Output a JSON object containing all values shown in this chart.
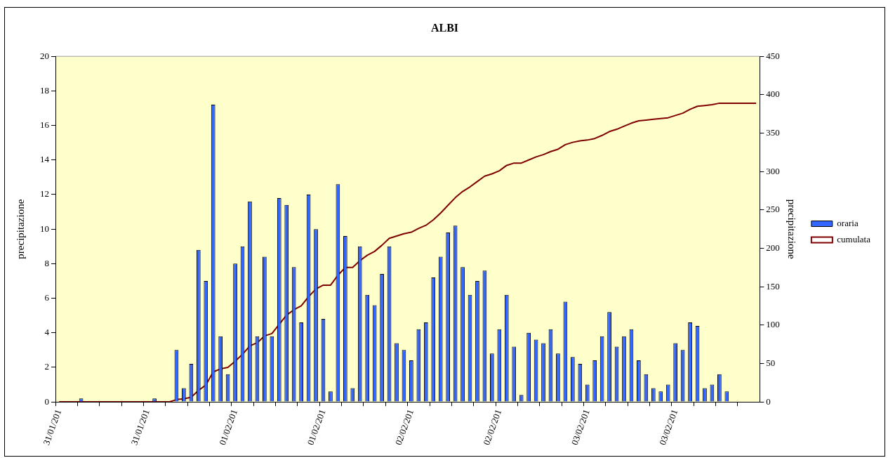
{
  "chart_data": {
    "type": "bar",
    "title": "ALBI",
    "ylabel": "precipitazione",
    "y2label": "precipitazione",
    "categories": [
      "31/01/201",
      null,
      null,
      null,
      null,
      null,
      null,
      null,
      null,
      null,
      null,
      null,
      "31/01/201",
      null,
      null,
      null,
      null,
      null,
      null,
      null,
      null,
      null,
      null,
      null,
      "01/02/201",
      null,
      null,
      null,
      null,
      null,
      null,
      null,
      null,
      null,
      null,
      null,
      "01/02/201",
      null,
      null,
      null,
      null,
      null,
      null,
      null,
      null,
      null,
      null,
      null,
      "02/02/201",
      null,
      null,
      null,
      null,
      null,
      null,
      null,
      null,
      null,
      null,
      null,
      "02/02/201",
      null,
      null,
      null,
      null,
      null,
      null,
      null,
      null,
      null,
      null,
      null,
      "03/02/201",
      null,
      null,
      null,
      null,
      null,
      null,
      null,
      null,
      null,
      null,
      null,
      "03/02/201",
      null,
      null,
      null,
      null,
      null,
      null,
      null,
      null,
      null,
      null,
      null
    ],
    "series": [
      {
        "name": "oraria",
        "color": "#3366ff",
        "values": [
          0,
          0,
          0,
          0.2,
          0,
          0,
          0,
          0,
          0,
          0,
          0,
          0,
          0,
          0.2,
          0,
          0,
          3.0,
          0.8,
          2.2,
          8.8,
          7.0,
          17.2,
          3.8,
          1.6,
          8.0,
          9.0,
          11.6,
          3.8,
          8.4,
          3.8,
          11.8,
          11.4,
          7.8,
          4.6,
          12.0,
          10.0,
          4.8,
          0.6,
          12.6,
          9.6,
          0.8,
          9.0,
          6.2,
          5.6,
          7.4,
          9.0,
          3.4,
          3.0,
          2.4,
          4.2,
          4.6,
          7.2,
          8.4,
          9.8,
          10.2,
          7.8,
          6.2,
          7.0,
          7.6,
          2.8,
          4.2,
          6.2,
          3.2,
          0.4,
          4.0,
          3.6,
          3.4,
          4.2,
          2.8,
          5.8,
          2.6,
          2.2,
          1.0,
          2.4,
          3.8,
          5.2,
          3.2,
          3.8,
          4.2,
          2.4,
          1.6,
          0.8,
          0.6,
          1.0,
          3.4,
          3.0,
          4.6,
          4.4,
          0.8,
          1.0,
          1.6,
          0.6,
          0,
          0,
          0,
          0
        ]
      },
      {
        "name": "cumulata",
        "type": "line",
        "axis": "y2",
        "color": "#800000",
        "values": [
          0,
          0,
          0,
          0,
          0,
          0,
          0,
          0,
          0,
          0,
          0,
          0,
          0,
          0,
          0,
          0,
          3,
          4,
          6,
          15,
          22,
          39,
          43,
          45,
          53,
          62,
          73,
          77,
          86,
          89,
          101,
          113,
          120,
          125,
          137,
          147,
          152,
          152,
          165,
          175,
          175,
          184,
          191,
          196,
          204,
          213,
          216,
          219,
          221,
          226,
          230,
          237,
          246,
          256,
          266,
          274,
          280,
          287,
          294,
          297,
          301,
          308,
          311,
          311,
          315,
          319,
          322,
          326,
          329,
          335,
          338,
          340,
          341,
          343,
          347,
          352,
          355,
          359,
          363,
          366,
          367,
          368,
          369,
          370,
          373,
          376,
          381,
          385,
          386,
          387,
          389,
          389,
          389,
          389,
          389,
          389
        ]
      }
    ],
    "ylim": [
      0,
      20
    ],
    "yticks": [
      0,
      2,
      4,
      6,
      8,
      10,
      12,
      14,
      16,
      18,
      20
    ],
    "y2lim": [
      0,
      450
    ],
    "y2ticks": [
      0,
      50,
      100,
      150,
      200,
      250,
      300,
      350,
      400,
      450
    ],
    "grid": false,
    "legend": "right",
    "marker": "none",
    "line_style": "solid"
  }
}
